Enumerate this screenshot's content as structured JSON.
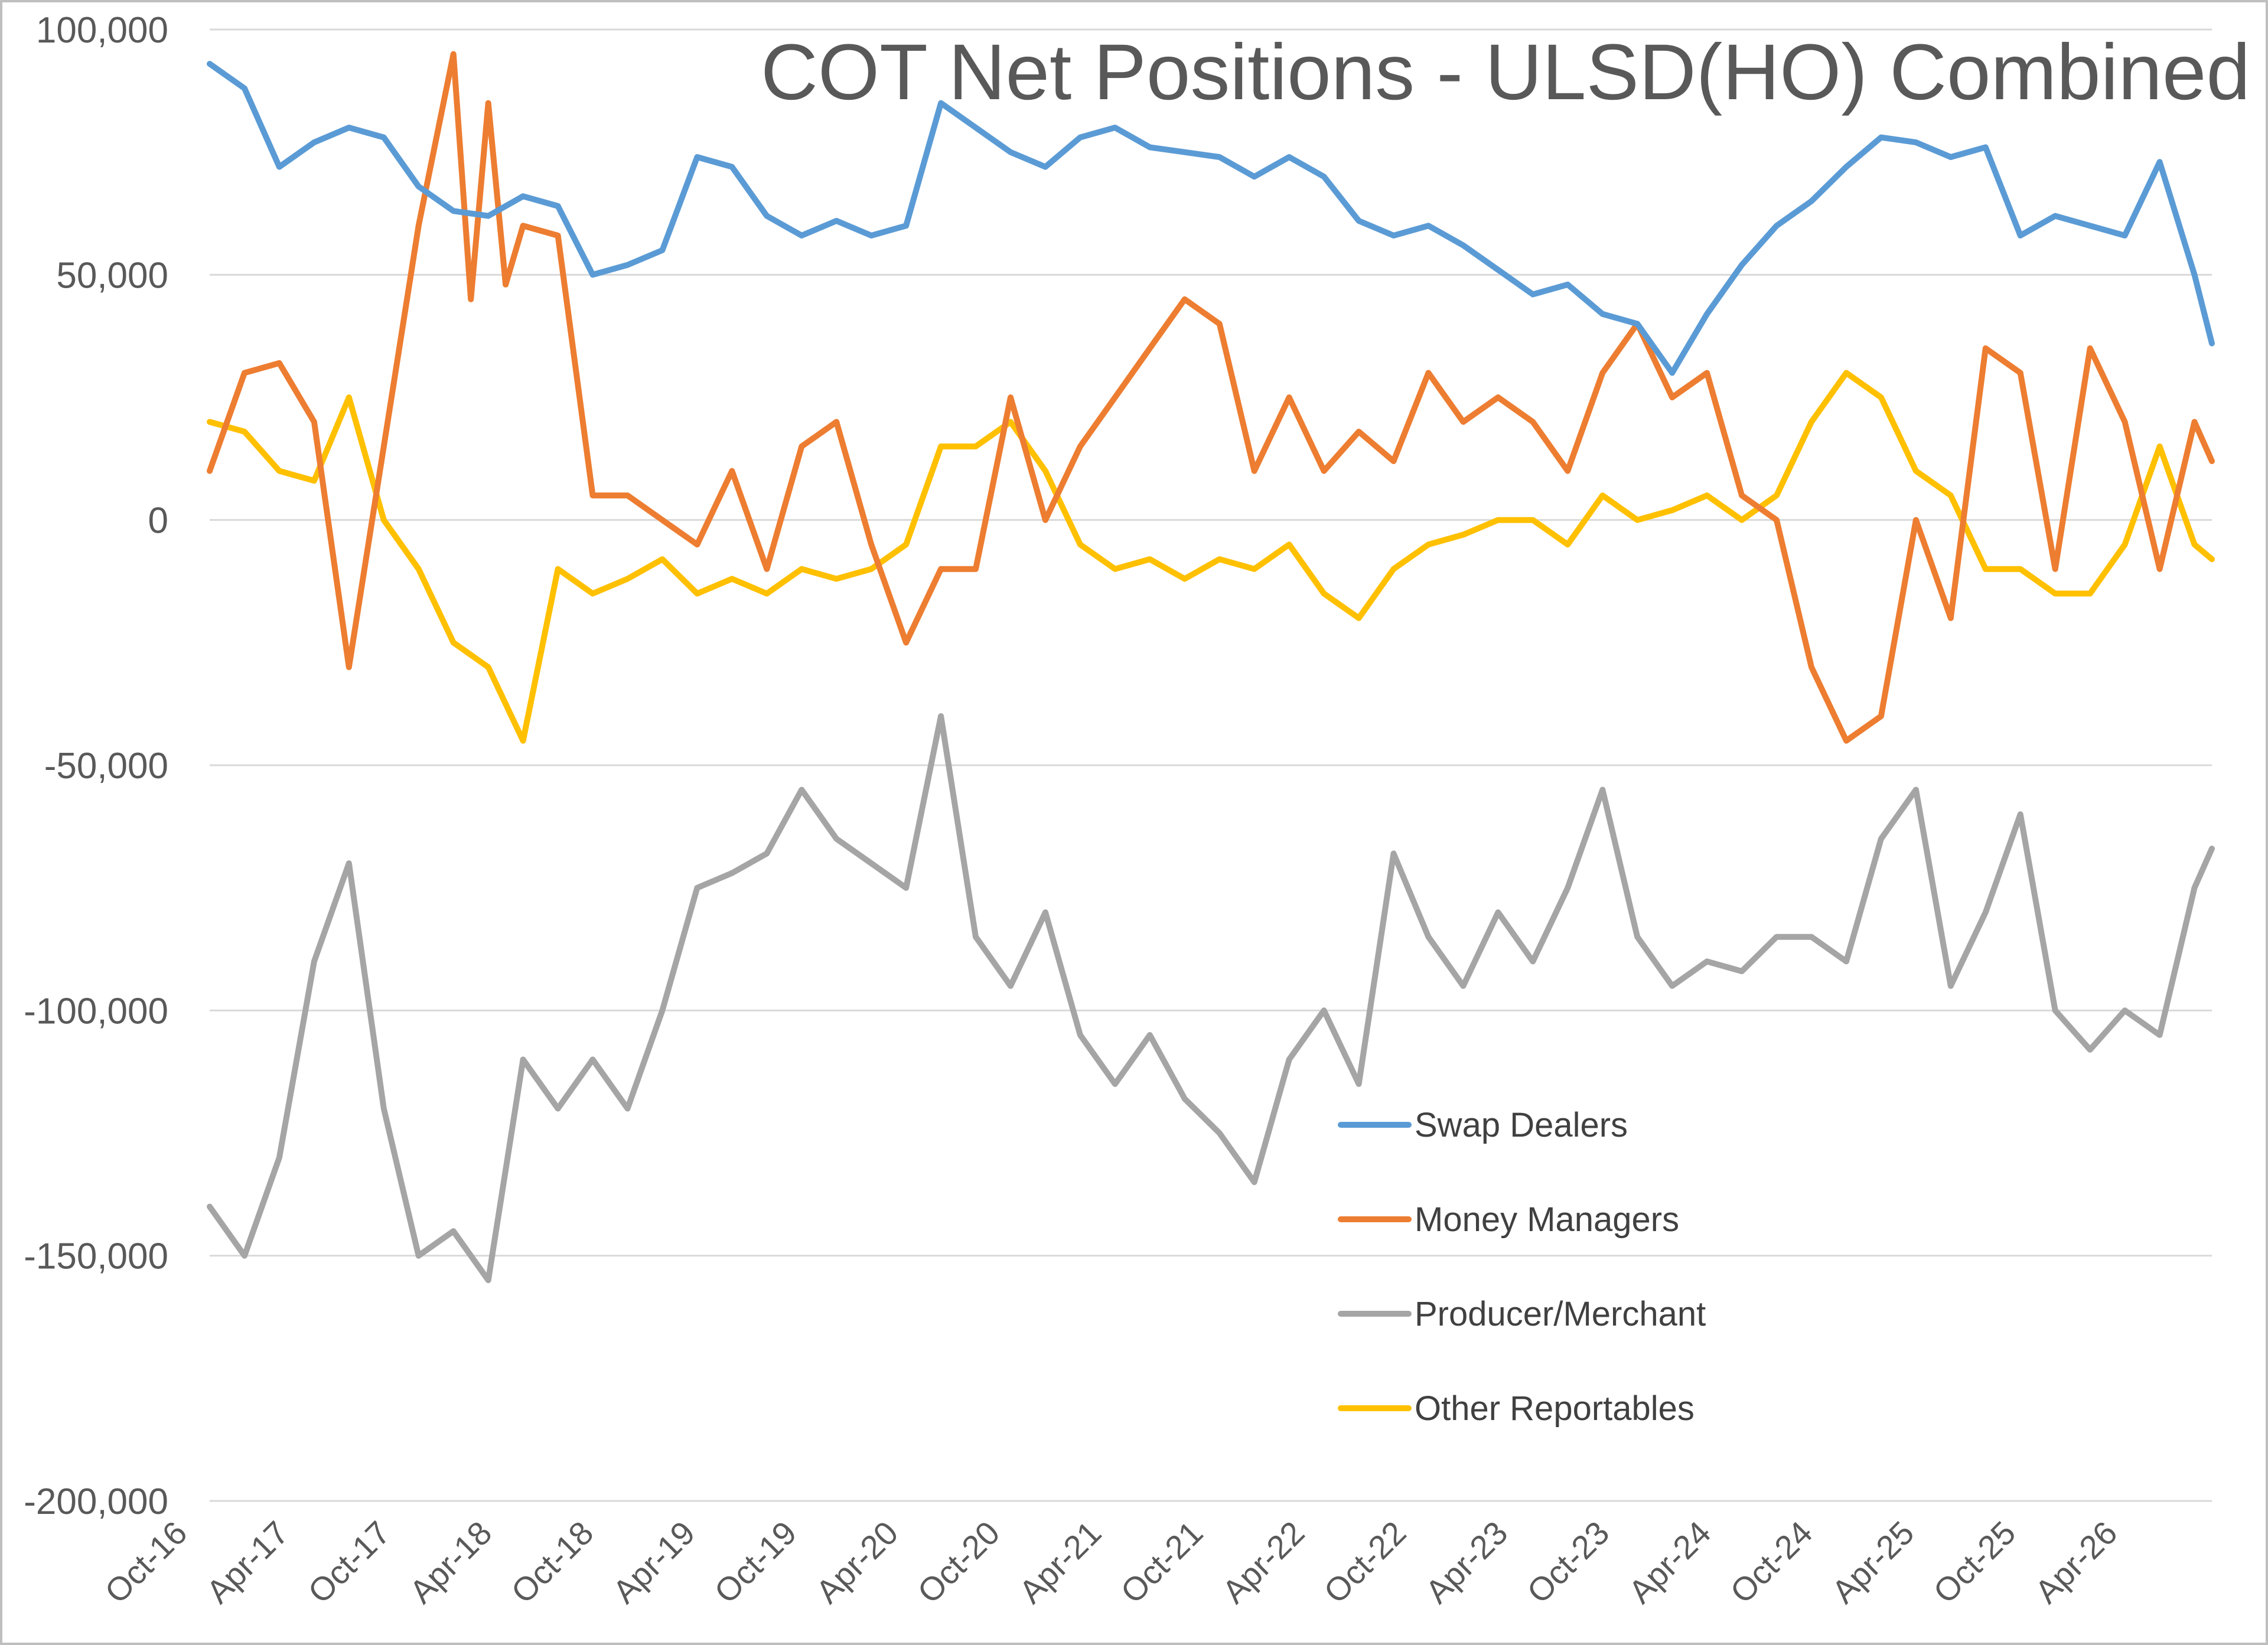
{
  "chart_data": {
    "type": "line",
    "title": "COT Net Positions - ULSD(HO) Combined",
    "xlabel": "",
    "ylabel": "",
    "ylim": [
      -200000,
      100000
    ],
    "yticks": [
      100000,
      50000,
      0,
      -50000,
      -100000,
      -150000,
      -200000
    ],
    "ytick_labels": [
      "100,000",
      "50,000",
      "0",
      "-50,000",
      "-100,000",
      "-150,000",
      "-200,000"
    ],
    "xlim": [
      "2016-10",
      "2026-05"
    ],
    "xtick_labels": [
      "Oct-16",
      "Apr-17",
      "Oct-17",
      "Apr-18",
      "Oct-18",
      "Apr-19",
      "Oct-19",
      "Apr-20",
      "Oct-20",
      "Apr-21",
      "Oct-21",
      "Apr-22",
      "Oct-22",
      "Apr-23",
      "Oct-23",
      "Apr-24",
      "Oct-24",
      "Apr-25",
      "Oct-25",
      "Apr-26"
    ],
    "grid": true,
    "legend_position": "center-right",
    "series": [
      {
        "name": "Swap Dealers",
        "color": "#5B9BD5",
        "x": [
          "2016-10",
          "2016-12",
          "2017-02",
          "2017-04",
          "2017-06",
          "2017-08",
          "2017-10",
          "2017-12",
          "2018-02",
          "2018-04",
          "2018-06",
          "2018-08",
          "2018-10",
          "2018-12",
          "2019-02",
          "2019-04",
          "2019-06",
          "2019-08",
          "2019-10",
          "2019-12",
          "2020-02",
          "2020-04",
          "2020-06",
          "2020-08",
          "2020-10",
          "2020-12",
          "2021-02",
          "2021-04",
          "2021-06",
          "2021-08",
          "2021-10",
          "2021-12",
          "2022-02",
          "2022-04",
          "2022-06",
          "2022-08",
          "2022-10",
          "2022-12",
          "2023-02",
          "2023-04",
          "2023-06",
          "2023-08",
          "2023-10",
          "2023-12",
          "2024-02",
          "2024-04",
          "2024-06",
          "2024-08",
          "2024-10",
          "2024-12",
          "2025-02",
          "2025-04",
          "2025-06",
          "2025-08",
          "2025-10",
          "2025-12",
          "2026-02",
          "2026-04",
          "2026-05"
        ],
        "values": [
          93000,
          88000,
          72000,
          77000,
          80000,
          78000,
          68000,
          63000,
          62000,
          66000,
          64000,
          50000,
          52000,
          55000,
          74000,
          72000,
          62000,
          58000,
          61000,
          58000,
          60000,
          85000,
          80000,
          75000,
          72000,
          78000,
          80000,
          76000,
          75000,
          74000,
          70000,
          74000,
          70000,
          61000,
          58000,
          60000,
          56000,
          51000,
          46000,
          48000,
          42000,
          40000,
          30000,
          42000,
          52000,
          60000,
          65000,
          72000,
          78000,
          77000,
          74000,
          76000,
          58000,
          62000,
          60000,
          58000,
          73000,
          50000,
          36000
        ]
      },
      {
        "name": "Money Managers",
        "color": "#ED7D31",
        "x": [
          "2016-10",
          "2016-12",
          "2017-02",
          "2017-04",
          "2017-06",
          "2017-08",
          "2017-10",
          "2017-12",
          "2018-01",
          "2018-02",
          "2018-03",
          "2018-04",
          "2018-06",
          "2018-08",
          "2018-10",
          "2018-12",
          "2019-02",
          "2019-04",
          "2019-06",
          "2019-08",
          "2019-10",
          "2019-12",
          "2020-02",
          "2020-04",
          "2020-06",
          "2020-08",
          "2020-10",
          "2020-12",
          "2021-02",
          "2021-04",
          "2021-06",
          "2021-08",
          "2021-10",
          "2021-12",
          "2022-02",
          "2022-04",
          "2022-06",
          "2022-08",
          "2022-10",
          "2022-12",
          "2023-02",
          "2023-04",
          "2023-06",
          "2023-08",
          "2023-10",
          "2023-12",
          "2024-02",
          "2024-04",
          "2024-06",
          "2024-08",
          "2024-10",
          "2024-12",
          "2025-02",
          "2025-04",
          "2025-06",
          "2025-08",
          "2025-10",
          "2025-12",
          "2026-02",
          "2026-04",
          "2026-05"
        ],
        "values": [
          10000,
          30000,
          32000,
          20000,
          -30000,
          15000,
          60000,
          95000,
          45000,
          85000,
          48000,
          60000,
          58000,
          5000,
          5000,
          0,
          -5000,
          10000,
          -10000,
          15000,
          20000,
          -5000,
          -25000,
          -10000,
          -10000,
          25000,
          0,
          15000,
          25000,
          35000,
          45000,
          40000,
          10000,
          25000,
          10000,
          18000,
          12000,
          30000,
          20000,
          25000,
          20000,
          10000,
          30000,
          40000,
          25000,
          30000,
          5000,
          0,
          -30000,
          -45000,
          -40000,
          0,
          -20000,
          35000,
          30000,
          -10000,
          35000,
          20000,
          -10000,
          20000,
          12000
        ]
      },
      {
        "name": "Producer/Merchant",
        "color": "#A5A5A5",
        "x": [
          "2016-10",
          "2016-12",
          "2017-02",
          "2017-04",
          "2017-06",
          "2017-08",
          "2017-10",
          "2017-12",
          "2018-02",
          "2018-04",
          "2018-06",
          "2018-08",
          "2018-10",
          "2018-12",
          "2019-02",
          "2019-04",
          "2019-06",
          "2019-08",
          "2019-10",
          "2019-12",
          "2020-02",
          "2020-04",
          "2020-06",
          "2020-08",
          "2020-10",
          "2020-12",
          "2021-02",
          "2021-04",
          "2021-06",
          "2021-08",
          "2021-10",
          "2021-12",
          "2022-02",
          "2022-04",
          "2022-06",
          "2022-08",
          "2022-10",
          "2022-12",
          "2023-02",
          "2023-04",
          "2023-06",
          "2023-08",
          "2023-10",
          "2023-12",
          "2024-02",
          "2024-04",
          "2024-06",
          "2024-08",
          "2024-10",
          "2024-12",
          "2025-02",
          "2025-04",
          "2025-06",
          "2025-08",
          "2025-10",
          "2025-12",
          "2026-02",
          "2026-04",
          "2026-05"
        ],
        "values": [
          -140000,
          -150000,
          -130000,
          -90000,
          -70000,
          -120000,
          -150000,
          -145000,
          -155000,
          -110000,
          -120000,
          -110000,
          -120000,
          -100000,
          -75000,
          -72000,
          -68000,
          -55000,
          -65000,
          -70000,
          -75000,
          -40000,
          -85000,
          -95000,
          -80000,
          -105000,
          -115000,
          -105000,
          -118000,
          -125000,
          -135000,
          -110000,
          -100000,
          -115000,
          -68000,
          -85000,
          -95000,
          -80000,
          -90000,
          -75000,
          -55000,
          -85000,
          -95000,
          -90000,
          -92000,
          -85000,
          -85000,
          -90000,
          -65000,
          -55000,
          -95000,
          -80000,
          -60000,
          -100000,
          -108000,
          -100000,
          -105000,
          -75000,
          -67000
        ]
      },
      {
        "name": "Other Reportables",
        "color": "#FFC000",
        "x": [
          "2016-10",
          "2016-12",
          "2017-02",
          "2017-04",
          "2017-06",
          "2017-08",
          "2017-10",
          "2017-12",
          "2018-02",
          "2018-04",
          "2018-06",
          "2018-08",
          "2018-10",
          "2018-12",
          "2019-02",
          "2019-04",
          "2019-06",
          "2019-08",
          "2019-10",
          "2019-12",
          "2020-02",
          "2020-04",
          "2020-06",
          "2020-08",
          "2020-10",
          "2020-12",
          "2021-02",
          "2021-04",
          "2021-06",
          "2021-08",
          "2021-10",
          "2021-12",
          "2022-02",
          "2022-04",
          "2022-06",
          "2022-08",
          "2022-10",
          "2022-12",
          "2023-02",
          "2023-04",
          "2023-06",
          "2023-08",
          "2023-10",
          "2023-12",
          "2024-02",
          "2024-04",
          "2024-06",
          "2024-08",
          "2024-10",
          "2024-12",
          "2025-02",
          "2025-04",
          "2025-06",
          "2025-08",
          "2025-10",
          "2025-12",
          "2026-02",
          "2026-04",
          "2026-05"
        ],
        "values": [
          20000,
          18000,
          10000,
          8000,
          25000,
          0,
          -10000,
          -25000,
          -30000,
          -45000,
          -10000,
          -15000,
          -12000,
          -8000,
          -15000,
          -12000,
          -15000,
          -10000,
          -12000,
          -10000,
          -5000,
          15000,
          15000,
          20000,
          10000,
          -5000,
          -10000,
          -8000,
          -12000,
          -8000,
          -10000,
          -5000,
          -15000,
          -20000,
          -10000,
          -5000,
          -3000,
          0,
          0,
          -5000,
          5000,
          0,
          2000,
          5000,
          0,
          5000,
          20000,
          30000,
          25000,
          10000,
          5000,
          -10000,
          -10000,
          -15000,
          -15000,
          -5000,
          15000,
          -5000,
          -8000
        ]
      }
    ]
  }
}
